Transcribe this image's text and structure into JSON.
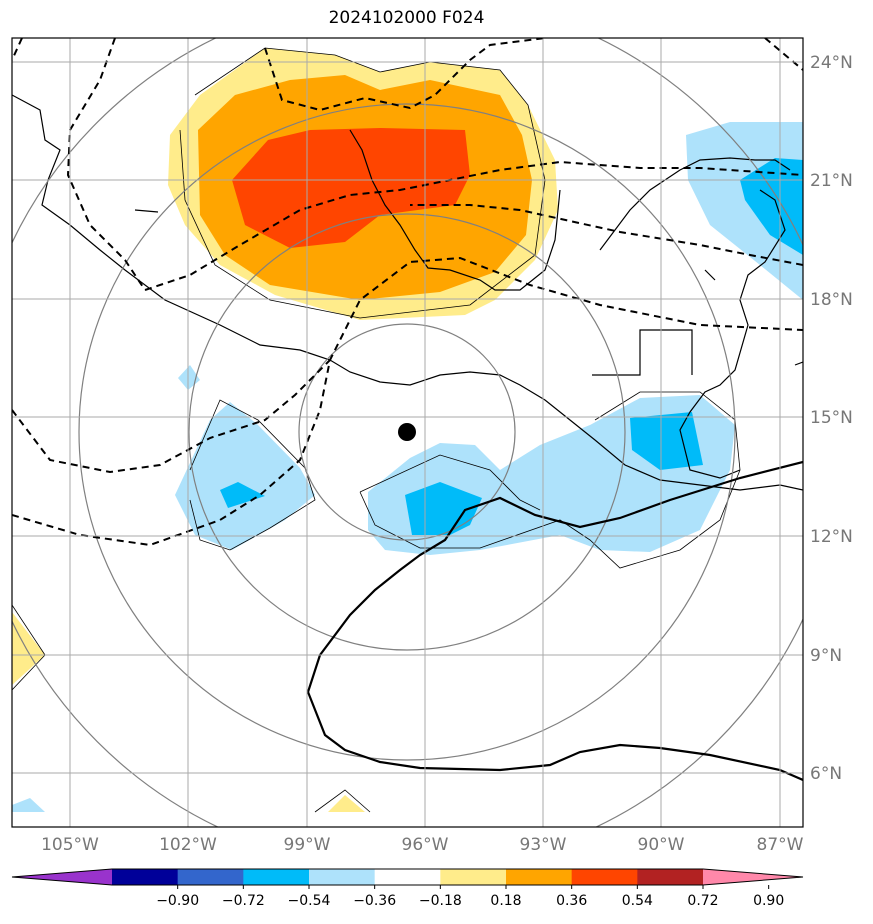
{
  "title": "2024102000 F024",
  "lon_labels": [
    "105°W",
    "102°W",
    "99°W",
    "96°W",
    "93°W",
    "90°W",
    "87°W"
  ],
  "lat_labels": [
    "24°N",
    "21°N",
    "18°N",
    "15°N",
    "12°N",
    "9°N",
    "6°N"
  ],
  "colorbar": {
    "ticks": [
      "−0.90",
      "−0.72",
      "−0.54",
      "−0.36",
      "−0.18",
      "0.18",
      "0.36",
      "0.54",
      "0.72",
      "0.90"
    ],
    "colors": [
      "#9933cc",
      "#000099",
      "#3366cc",
      "#00bbf9",
      "#aee2fb",
      "#ffffff",
      "#ffec8b",
      "#ffa500",
      "#ff4500",
      "#b22222",
      "#ff88aa"
    ]
  },
  "storm_center": {
    "lon": -96.5,
    "lat": 14.7
  },
  "colors": {
    "frame": "#000000",
    "grid": "#aaaaaa",
    "range_rings": "#808080",
    "coast": "#000000"
  }
}
